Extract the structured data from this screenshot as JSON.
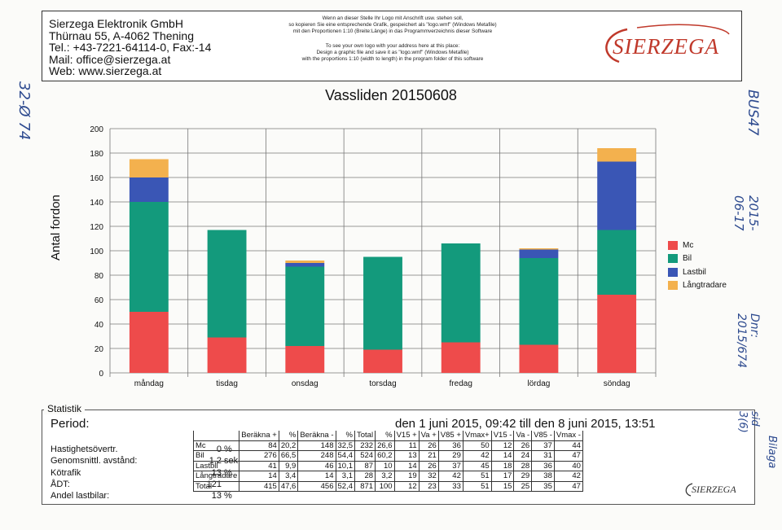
{
  "header": {
    "address_lines": [
      "Sierzega Elektronik GmbH",
      "Thürnau 55, A-4062 Thening",
      "Tel.: +43-7221-64114-0, Fax:-14",
      "Mail: office@sierzega.at",
      "Web: www.sierzega.at"
    ],
    "note_de": [
      "Wenn an dieser Stelle Ihr Logo mit Anschrift usw. stehen soll,",
      "so kopieren Sie eine entsprechende Grafik, gespeichert als \"logo.wmf\" (Windows Metafile)",
      "mit den Proportionen 1:10 (Breite:Länge) in das Programmverzeichnis dieser Software"
    ],
    "note_en": [
      "To see your own logo with your address here at this place:",
      "Design a graphic file and save it as \"logo.wmf\" (Windows Metafile)",
      "with the proportions 1:10 (width to length) in the program folder of this software"
    ],
    "logo_text": "SIERZEGA"
  },
  "chart_data": {
    "type": "bar",
    "stacked": true,
    "title": "Vassliden 20150608",
    "xlabel": "",
    "ylabel": "Antal fordon",
    "ylim": [
      0,
      200
    ],
    "yticks": [
      0,
      20,
      40,
      60,
      80,
      100,
      120,
      140,
      160,
      180,
      200
    ],
    "categories": [
      "måndag",
      "tisdag",
      "onsdag",
      "torsdag",
      "fredag",
      "lördag",
      "söndag"
    ],
    "series": [
      {
        "name": "Mc",
        "color": "#ee4b4b",
        "values": [
          50,
          29,
          22,
          19,
          25,
          23,
          64
        ]
      },
      {
        "name": "Bil",
        "color": "#139a7c",
        "values": [
          90,
          88,
          65,
          76,
          81,
          71,
          53
        ]
      },
      {
        "name": "Lastbil",
        "color": "#3a56b5",
        "values": [
          20,
          0,
          3,
          0,
          0,
          7,
          56
        ]
      },
      {
        "name": "Långtradare",
        "color": "#f3b14e",
        "values": [
          15,
          0,
          2,
          0,
          0,
          1,
          11
        ]
      }
    ],
    "grid": true,
    "legend_position": "right"
  },
  "stats": {
    "section_label": "Statistik",
    "period_label": "Period:",
    "period_value": "den 1 juni 2015, 09:42 till den 8 juni 2015, 13:51",
    "metrics": [
      {
        "label": "Hastighetsövertr.",
        "value": "0",
        "unit": "%"
      },
      {
        "label": "Genomsnittl. avstånd:",
        "value": "1,2",
        "unit": "sek"
      },
      {
        "label": "Kötrafik",
        "value": "13",
        "unit": "%"
      },
      {
        "label": "ÅDT:",
        "value": "121",
        "unit": ""
      },
      {
        "label": "Andel lastbilar:",
        "value": "13",
        "unit": "%"
      }
    ],
    "table": {
      "headers": [
        "",
        "Beräkna +",
        "%",
        "Beräkna -",
        "%",
        "Total",
        "%",
        "V15 +",
        "Va +",
        "V85 +",
        "Vmax+",
        "V15 -",
        "Va -",
        "V85 -",
        "Vmax -"
      ],
      "rows": [
        [
          "Mc",
          "84",
          "20,2",
          "148",
          "32,5",
          "232",
          "26,6",
          "11",
          "26",
          "36",
          "50",
          "12",
          "26",
          "37",
          "44"
        ],
        [
          "Bil",
          "276",
          "66,5",
          "248",
          "54,4",
          "524",
          "60,2",
          "13",
          "21",
          "29",
          "42",
          "14",
          "24",
          "31",
          "47"
        ],
        [
          "Lastbil",
          "41",
          "9,9",
          "46",
          "10,1",
          "87",
          "10",
          "14",
          "26",
          "37",
          "45",
          "18",
          "28",
          "36",
          "40"
        ],
        [
          "Långtradare",
          "14",
          "3,4",
          "14",
          "3,1",
          "28",
          "3,2",
          "19",
          "32",
          "42",
          "51",
          "17",
          "29",
          "38",
          "42"
        ],
        [
          "Total",
          "415",
          "47,6",
          "456",
          "52,4",
          "871",
          "100",
          "12",
          "23",
          "33",
          "51",
          "15",
          "25",
          "35",
          "47"
        ]
      ]
    },
    "logo_small": "SIERZEGA"
  },
  "handwriting": {
    "left": "32-Ø 74",
    "right_1": "BUS47",
    "right_2": "2015-06-17",
    "right_3": "Dnr: 2015/674",
    "right_4": "Bilaga",
    "right_5": "sid 3(6)"
  }
}
